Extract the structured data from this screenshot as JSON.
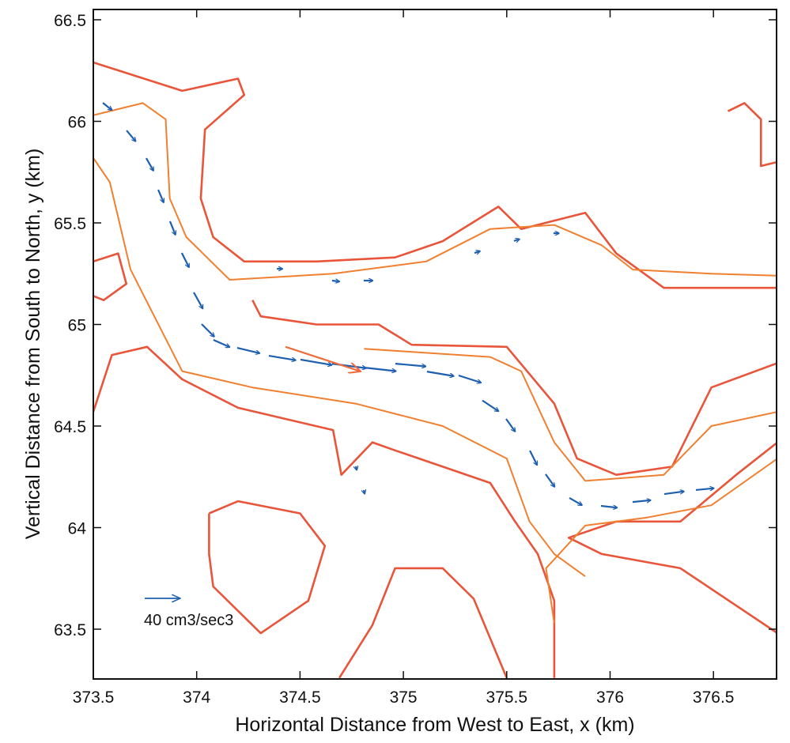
{
  "chart_data": {
    "type": "quiver-contour",
    "xlabel": "Horizontal Distance from West to East, x (km)",
    "ylabel": "Vertical Distance from South to North, y (km)",
    "xlim": [
      373.5,
      376.81
    ],
    "ylim": [
      63.26,
      66.55
    ],
    "xticks": [
      373.5,
      374,
      374.5,
      375,
      375.5,
      376,
      376.5
    ],
    "xtick_labels": [
      "373.5",
      "374",
      "374.5",
      "375",
      "375.5",
      "376",
      "376.5"
    ],
    "yticks": [
      63.5,
      64,
      64.5,
      65,
      65.5,
      66,
      66.5
    ],
    "ytick_labels": [
      "63.5",
      "64",
      "64.5",
      "65",
      "65.5",
      "66",
      "66.5"
    ],
    "grid": false,
    "colors": {
      "contour_outer": "#e8553a",
      "contour_inner": "#f08030",
      "vectors": "#1f5fb0",
      "mean_vector": "#f06a3a"
    },
    "legend": {
      "label": "40 cm3/sec3",
      "reference_magnitude": 40,
      "placement": "bottom-left"
    },
    "mean_vector": {
      "from": [
        374.43,
        64.89
      ],
      "to": [
        374.79,
        64.77
      ]
    },
    "vectors": [
      [
        373.546,
        66.091,
        10,
        -8
      ],
      [
        373.661,
        65.955,
        10,
        -12
      ],
      [
        373.756,
        65.819,
        8,
        -14
      ],
      [
        373.814,
        65.663,
        6,
        -14
      ],
      [
        373.871,
        65.508,
        6,
        -15
      ],
      [
        373.928,
        65.352,
        8,
        -16
      ],
      [
        373.986,
        65.158,
        10,
        -18
      ],
      [
        374.024,
        65.002,
        14,
        -14
      ],
      [
        374.081,
        64.924,
        18,
        -8
      ],
      [
        374.196,
        64.885,
        25,
        -6
      ],
      [
        374.349,
        64.846,
        30,
        -5
      ],
      [
        374.502,
        64.827,
        35,
        -6
      ],
      [
        374.655,
        64.807,
        38,
        -5
      ],
      [
        374.808,
        64.788,
        36,
        -4
      ],
      [
        374.961,
        64.807,
        34,
        -3
      ],
      [
        375.114,
        64.768,
        30,
        -5
      ],
      [
        375.267,
        64.749,
        25,
        -8
      ],
      [
        375.382,
        64.626,
        18,
        -12
      ],
      [
        375.497,
        64.535,
        10,
        -14
      ],
      [
        375.612,
        64.379,
        8,
        -16
      ],
      [
        375.688,
        64.263,
        10,
        -14
      ],
      [
        375.803,
        64.146,
        14,
        -8
      ],
      [
        375.956,
        64.107,
        18,
        -2
      ],
      [
        376.109,
        64.126,
        20,
        2
      ],
      [
        376.262,
        64.165,
        22,
        3
      ],
      [
        376.415,
        64.185,
        20,
        2
      ],
      [
        374.388,
        65.274,
        6,
        0
      ],
      [
        374.655,
        65.216,
        8,
        -1
      ],
      [
        374.808,
        65.216,
        10,
        0
      ],
      [
        375.344,
        65.352,
        6,
        2
      ],
      [
        375.535,
        65.411,
        6,
        2
      ],
      [
        375.726,
        65.449,
        6,
        0
      ],
      [
        374.77,
        64.302,
        1,
        -4
      ],
      [
        374.808,
        64.185,
        1,
        -4
      ]
    ],
    "contours": [
      {
        "level": "outer",
        "points": [
          [
            373.5,
            66.29
          ],
          [
            373.93,
            66.15
          ],
          [
            374.2,
            66.21
          ],
          [
            374.23,
            66.13
          ],
          [
            374.04,
            65.96
          ],
          [
            374.02,
            65.62
          ],
          [
            374.08,
            65.43
          ],
          [
            374.23,
            65.31
          ],
          [
            374.58,
            65.31
          ],
          [
            374.96,
            65.33
          ],
          [
            375.19,
            65.41
          ],
          [
            375.46,
            65.58
          ],
          [
            375.57,
            65.47
          ],
          [
            375.88,
            65.55
          ],
          [
            376.03,
            65.35
          ],
          [
            376.26,
            65.18
          ],
          [
            376.81,
            65.18
          ]
        ]
      },
      {
        "level": "outer",
        "points": [
          [
            373.5,
            64.57
          ],
          [
            373.59,
            64.85
          ],
          [
            373.76,
            64.89
          ],
          [
            373.93,
            64.73
          ],
          [
            374.2,
            64.59
          ],
          [
            374.66,
            64.48
          ],
          [
            374.7,
            64.26
          ],
          [
            374.85,
            64.42
          ],
          [
            374.96,
            64.38
          ],
          [
            375.19,
            64.3
          ],
          [
            375.42,
            64.22
          ],
          [
            375.54,
            64.03
          ],
          [
            375.65,
            63.87
          ],
          [
            375.73,
            63.64
          ],
          [
            375.73,
            63.26
          ]
        ]
      },
      {
        "level": "outer",
        "points": [
          [
            376.81,
            64.81
          ],
          [
            376.49,
            64.69
          ],
          [
            376.3,
            64.3
          ],
          [
            376.03,
            64.26
          ],
          [
            375.84,
            64.34
          ],
          [
            375.73,
            64.61
          ],
          [
            375.5,
            64.89
          ],
          [
            375.04,
            64.9
          ],
          [
            374.88,
            65.0
          ],
          [
            374.58,
            65.0
          ],
          [
            374.31,
            65.04
          ],
          [
            374.27,
            65.12
          ]
        ]
      },
      {
        "level": "outer",
        "points": [
          [
            376.81,
            64.42
          ],
          [
            376.61,
            64.26
          ],
          [
            376.34,
            64.03
          ],
          [
            376.03,
            64.03
          ],
          [
            375.8,
            63.95
          ],
          [
            375.96,
            63.87
          ],
          [
            376.34,
            63.8
          ],
          [
            376.81,
            63.48
          ]
        ]
      },
      {
        "level": "outer",
        "points": [
          [
            376.57,
            66.05
          ],
          [
            376.65,
            66.09
          ],
          [
            376.73,
            66.01
          ],
          [
            376.73,
            65.78
          ],
          [
            376.81,
            65.8
          ]
        ]
      },
      {
        "level": "outer",
        "points": [
          [
            374.06,
            64.07
          ],
          [
            374.2,
            64.13
          ],
          [
            374.5,
            64.07
          ],
          [
            374.62,
            63.91
          ],
          [
            374.54,
            63.64
          ],
          [
            374.31,
            63.48
          ],
          [
            374.08,
            63.71
          ],
          [
            374.06,
            63.87
          ],
          [
            374.06,
            64.07
          ]
        ]
      },
      {
        "level": "outer",
        "points": [
          [
            374.69,
            63.26
          ],
          [
            374.85,
            63.52
          ],
          [
            374.96,
            63.8
          ],
          [
            375.19,
            63.8
          ],
          [
            375.34,
            63.65
          ],
          [
            375.5,
            63.26
          ]
        ]
      },
      {
        "level": "outer",
        "points": [
          [
            373.5,
            65.31
          ],
          [
            373.62,
            65.35
          ],
          [
            373.66,
            65.2
          ],
          [
            373.55,
            65.12
          ],
          [
            373.5,
            65.14
          ]
        ]
      },
      {
        "level": "inner",
        "points": [
          [
            373.5,
            66.03
          ],
          [
            373.74,
            66.09
          ],
          [
            373.85,
            66.01
          ],
          [
            373.87,
            65.62
          ],
          [
            373.95,
            65.43
          ],
          [
            374.16,
            65.22
          ],
          [
            374.66,
            65.25
          ],
          [
            375.11,
            65.31
          ],
          [
            375.42,
            65.47
          ],
          [
            375.73,
            65.49
          ],
          [
            375.96,
            65.39
          ],
          [
            376.11,
            65.27
          ],
          [
            376.49,
            65.25
          ],
          [
            376.81,
            65.24
          ]
        ]
      },
      {
        "level": "inner",
        "points": [
          [
            373.5,
            65.82
          ],
          [
            373.58,
            65.7
          ],
          [
            373.68,
            65.27
          ],
          [
            373.93,
            64.77
          ],
          [
            374.27,
            64.69
          ],
          [
            374.77,
            64.61
          ],
          [
            375.19,
            64.5
          ],
          [
            375.5,
            64.34
          ],
          [
            375.61,
            64.03
          ],
          [
            375.73,
            63.87
          ],
          [
            375.88,
            63.76
          ]
        ]
      },
      {
        "level": "inner",
        "points": [
          [
            374.81,
            64.88
          ],
          [
            375.42,
            64.84
          ],
          [
            375.57,
            64.77
          ],
          [
            375.73,
            64.42
          ],
          [
            375.88,
            64.23
          ],
          [
            376.26,
            64.26
          ],
          [
            376.49,
            64.5
          ],
          [
            376.81,
            64.57
          ]
        ]
      },
      {
        "level": "inner",
        "points": [
          [
            376.81,
            64.34
          ],
          [
            376.49,
            64.11
          ],
          [
            376.18,
            64.05
          ],
          [
            375.88,
            64.01
          ],
          [
            375.69,
            63.8
          ],
          [
            375.73,
            63.53
          ]
        ]
      }
    ]
  }
}
